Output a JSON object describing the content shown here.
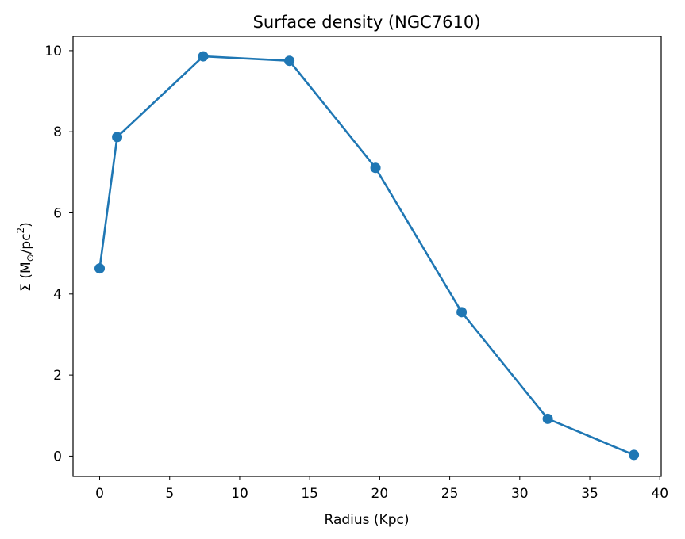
{
  "chart_data": {
    "type": "line",
    "title": "Surface density (NGC7610)",
    "xlabel": "Radius (Kpc)",
    "ylabel_parts": {
      "prefix": "Σ (M",
      "sub": "⊙",
      "middle": "/pc",
      "sup": "2",
      "suffix": ")"
    },
    "xlim": [
      -1.9,
      40.1
    ],
    "ylim": [
      -0.5,
      10.35
    ],
    "xticks": [
      0,
      5,
      10,
      15,
      20,
      25,
      30,
      35,
      40
    ],
    "yticks": [
      0,
      2,
      4,
      6,
      8,
      10
    ],
    "grid": false,
    "series": [
      {
        "name": "Surface density",
        "color": "#1f77b4",
        "marker": "circle",
        "x": [
          0,
          1.25,
          7.4,
          13.55,
          19.7,
          25.85,
          32.0,
          38.15
        ],
        "y": [
          4.63,
          7.87,
          9.86,
          9.75,
          7.11,
          3.55,
          0.92,
          0.03
        ]
      }
    ]
  }
}
